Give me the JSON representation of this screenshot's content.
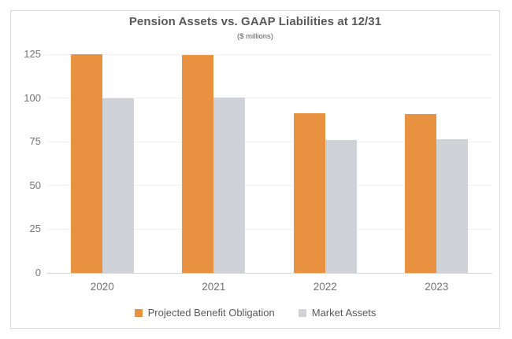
{
  "chart_data": {
    "type": "bar",
    "title": "Pension Assets vs. GAAP Liabilities at 12/31",
    "subtitle": "($ millions)",
    "categories": [
      "2020",
      "2021",
      "2022",
      "2023"
    ],
    "series": [
      {
        "name": "Projected Benefit Obligation",
        "color": "#E89141",
        "values": [
          125,
          124.5,
          91.5,
          91
        ]
      },
      {
        "name": "Market Assets",
        "color": "#CFD2D7",
        "values": [
          100,
          100.5,
          76,
          76.5
        ]
      }
    ],
    "y_ticks": [
      0,
      25,
      50,
      75,
      100,
      125
    ],
    "ylim": [
      0,
      125
    ],
    "xlabel": "",
    "ylabel": "",
    "grid": true,
    "legend_position": "bottom"
  },
  "colors": {
    "frame_border": "#D9D9D9",
    "gridline": "#F1F1F2",
    "axis_line": "#D9D9D9",
    "title_text": "#595959",
    "tick_text": "#737373",
    "legend_text": "#595959",
    "background": "#FFFFFF"
  }
}
